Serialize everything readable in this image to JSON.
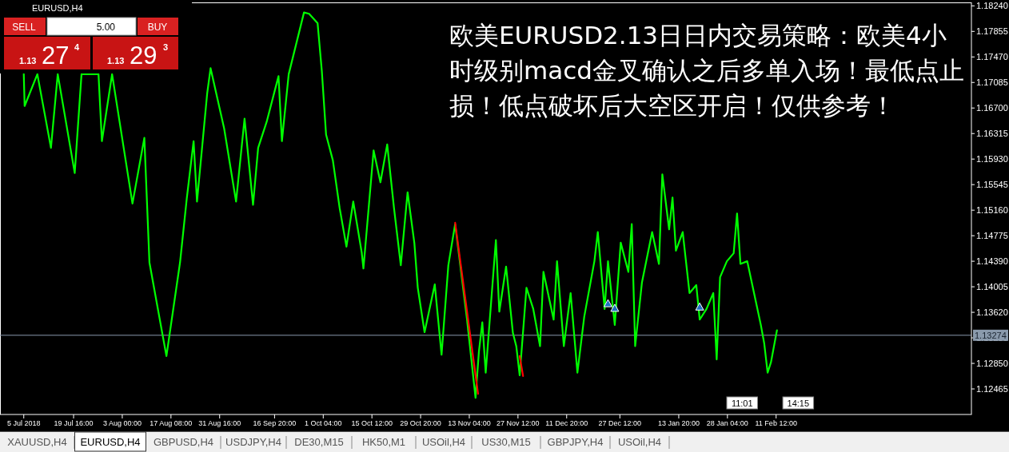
{
  "chart_data": {
    "type": "line",
    "title": "欧美EURUSD2.13日日内交易策略：欧美4小时级别macd金叉确认之后多单入场！最低点止损！低点破坏后大空区开启！仅供参考！",
    "xlim": [
      "2018-06-28",
      "2019-04-10"
    ],
    "ylim": [
      1.1208,
      1.1828
    ],
    "xticks": [
      {
        "value": "2018-07-05",
        "label": "5 Jul 2018"
      },
      {
        "value": "2018-07-19T16:00",
        "label": "19 Jul 16:00"
      },
      {
        "value": "2018-08-03T00:00",
        "label": "3 Aug 00:00"
      },
      {
        "value": "2018-08-17T08:00",
        "label": "17 Aug 08:00"
      },
      {
        "value": "2018-08-31T16:00",
        "label": "31 Aug 16:00"
      },
      {
        "value": "2018-09-16T20:00",
        "label": "16 Sep 20:00"
      },
      {
        "value": "2018-10-01T04:00",
        "label": "1 Oct 04:00"
      },
      {
        "value": "2018-10-15T12:00",
        "label": "15 Oct 12:00"
      },
      {
        "value": "2018-10-29T20:00",
        "label": "29 Oct 20:00"
      },
      {
        "value": "2018-11-13T04:00",
        "label": "13 Nov 04:00"
      },
      {
        "value": "2018-11-27T12:00",
        "label": "27 Nov 12:00"
      },
      {
        "value": "2018-12-11T20:00",
        "label": "11 Dec 20:00"
      },
      {
        "value": "2018-12-27T12:00",
        "label": "27 Dec 12:00"
      },
      {
        "value": "2019-01-13T20:00",
        "label": "13 Jan 20:00"
      },
      {
        "value": "2019-01-28T04:00",
        "label": "28 Jan 04:00"
      },
      {
        "value": "2019-02-11T12:00",
        "label": "11 Feb 12:00"
      }
    ],
    "yticks": [
      {
        "value": 1.1824,
        "label": "1.18240"
      },
      1.17855,
      {
        "value": 1.1747,
        "label": "1.17470"
      },
      1.17085,
      {
        "value": 1.167,
        "label": "1.16700"
      },
      1.16315,
      {
        "value": 1.1593,
        "label": "1.15930"
      },
      1.15545,
      {
        "value": 1.1516,
        "label": "1.15160"
      },
      1.14775,
      {
        "value": 1.1439,
        "label": "1.14390"
      },
      1.14005,
      {
        "value": 1.1362,
        "label": "1.13620"
      },
      1.13235,
      {
        "value": 1.1285,
        "label": "1.12850"
      },
      1.12465
    ],
    "ref_lines": [
      {
        "axis": "y",
        "value": 1.13274,
        "label": "1.13274",
        "color": "#8a9aac"
      }
    ],
    "series": [
      {
        "type": "line",
        "color": "#00ff00",
        "x": [
          "2018-07-05",
          "2018-07-05T06:00",
          "2018-07-09",
          "2018-07-13",
          "2018-07-15",
          "2018-07-20",
          "2018-07-22",
          "2018-07-27",
          "2018-07-28",
          "2018-07-31",
          "2018-08-06",
          "2018-08-09T12:00",
          "2018-08-11",
          "2018-08-16",
          "2018-08-20",
          "2018-08-22",
          "2018-08-24",
          "2018-08-25",
          "2018-08-28",
          "2018-08-29",
          "2018-09-02",
          "2018-09-05T12:00",
          "2018-09-08",
          "2018-09-10T12:00",
          "2018-09-12",
          "2018-09-14T12:00",
          "2018-09-18",
          "2018-09-19",
          "2018-09-21",
          "2018-09-24",
          "2018-09-25T12:00",
          "2018-09-27",
          "2018-09-29T12:00",
          "2018-09-30T18:00",
          "2018-10-02",
          "2018-10-04",
          "2018-10-06",
          "2018-10-08",
          "2018-10-10",
          "2018-10-12T12:00",
          "2018-10-13",
          "2018-10-16",
          "2018-10-18",
          "2018-10-20",
          "2018-10-22",
          "2018-10-24",
          "2018-10-26",
          "2018-10-28",
          "2018-10-29",
          "2018-10-31",
          "2018-11-03",
          "2018-11-05",
          "2018-11-07",
          "2018-11-09",
          "2018-11-12T12:00",
          "2018-11-15",
          "2018-11-16",
          "2018-11-17",
          "2018-11-18",
          "2018-11-21",
          "2018-11-22",
          "2018-11-24",
          "2018-11-26",
          "2018-11-27",
          "2018-11-28",
          "2018-11-30",
          "2018-12-02",
          "2018-12-04",
          "2018-12-05",
          "2018-12-08",
          "2018-12-09",
          "2018-12-11",
          "2018-12-13",
          "2018-12-15",
          "2018-12-17",
          "2018-12-20",
          "2018-12-21",
          "2018-12-23",
          "2018-12-24",
          "2018-12-26",
          "2018-12-27T18:00",
          "2018-12-30",
          "2018-12-31",
          "2019-01-01",
          "2019-01-03",
          "2019-01-06",
          "2019-01-08",
          "2019-01-09",
          "2019-01-11",
          "2019-01-12",
          "2019-01-13",
          "2019-01-15",
          "2019-01-17",
          "2019-01-19",
          "2019-01-20",
          "2019-01-22",
          "2019-01-24",
          "2019-01-25",
          "2019-01-26",
          "2019-01-28",
          "2019-01-30",
          "2019-01-31",
          "2019-02-01",
          "2019-02-03",
          "2019-02-05",
          "2019-02-07",
          "2019-02-08",
          "2019-02-09",
          "2019-02-10",
          "2019-02-11T18:00"
        ],
        "values": [
          1.1721,
          1.1673,
          1.1721,
          1.161,
          1.1721,
          1.1572,
          1.1721,
          1.1721,
          1.162,
          1.1721,
          1.1526,
          1.1625,
          1.1437,
          1.1296,
          1.1437,
          1.1534,
          1.162,
          1.1529,
          1.1692,
          1.173,
          1.1639,
          1.1529,
          1.1654,
          1.1524,
          1.161,
          1.1649,
          1.1718,
          1.162,
          1.1721,
          1.1783,
          1.1814,
          1.1812,
          1.1798,
          1.1726,
          1.163,
          1.1591,
          1.1519,
          1.1461,
          1.1529,
          1.1452,
          1.1428,
          1.1606,
          1.1558,
          1.1615,
          1.1519,
          1.1433,
          1.1543,
          1.1466,
          1.1399,
          1.1332,
          1.1404,
          1.1298,
          1.1433,
          1.1495,
          1.1351,
          1.1233,
          1.1303,
          1.1347,
          1.1271,
          1.1471,
          1.1363,
          1.1431,
          1.1331,
          1.1311,
          1.1267,
          1.1399,
          1.1367,
          1.1311,
          1.1423,
          1.1351,
          1.1439,
          1.1311,
          1.1391,
          1.1271,
          1.1355,
          1.1439,
          1.1483,
          1.1367,
          1.1439,
          1.1343,
          1.1467,
          1.1423,
          1.1495,
          1.1311,
          1.1407,
          1.1483,
          1.1435,
          1.157,
          1.1487,
          1.1535,
          1.1455,
          1.1483,
          1.1391,
          1.1403,
          1.1351,
          1.1367,
          1.1391,
          1.1291,
          1.1415,
          1.1439,
          1.1451,
          1.1511,
          1.1435,
          1.1439,
          1.1391,
          1.1343,
          1.1315,
          1.1271,
          1.1287,
          1.1335
        ]
      },
      {
        "type": "line",
        "color": "#ff0000",
        "x": [
          "2018-11-09",
          "2018-11-15T18:00"
        ],
        "values": [
          1.1497,
          1.1239
        ]
      },
      {
        "type": "line",
        "color": "#ff0000",
        "x": [
          "2018-11-28",
          "2018-11-29"
        ],
        "values": [
          1.1296,
          1.1266
        ]
      },
      {
        "type": "scatter",
        "color": "#1f6fbf",
        "marker": "triangle",
        "x": [
          "2018-12-24",
          "2018-12-26",
          "2019-01-20"
        ],
        "values": [
          1.1374,
          1.1367,
          1.1369
        ]
      }
    ],
    "annotations": [
      "EURUSD,H4",
      "SELL",
      "5.00",
      "BUY",
      "1.13",
      "27",
      "4",
      "1.13",
      "29",
      "3",
      "XAUUSD,H4",
      "EURUSD,H4",
      "GBPUSD,H4",
      "USDJPY,H4",
      "DE30,M15",
      "HK50,M1",
      "USOil,H4",
      "US30,M15",
      "GBPJPY,H4",
      "USOil,H4",
      {
        "text": "11:01",
        "x": "2019-02-01T12:00"
      },
      {
        "text": "14:15",
        "x": "2019-02-18"
      }
    ]
  }
}
